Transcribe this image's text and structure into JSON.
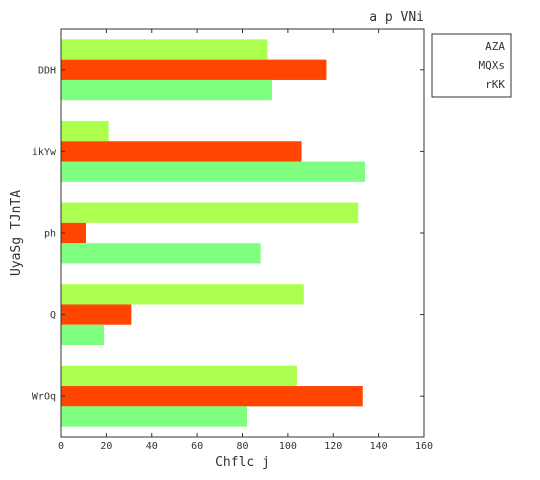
{
  "chart_data": {
    "type": "bar",
    "orientation": "horizontal",
    "title": "a  p VNi",
    "xlabel": "Chflc j",
    "ylabel": "UyaSg TJnTA",
    "categories": [
      "DDH",
      "ikYw",
      "ph",
      "Q",
      "WrOq"
    ],
    "series": [
      {
        "name": "AZA",
        "color": "#adff4f",
        "values": [
          91,
          21,
          131,
          107,
          104
        ]
      },
      {
        "name": "MQXs",
        "color": "#ff4500",
        "values": [
          117,
          106,
          11,
          31,
          133
        ]
      },
      {
        "name": "rKK",
        "color": "#7fff7f",
        "values": [
          93,
          134,
          88,
          19,
          82
        ]
      }
    ],
    "xlim": [
      0,
      160
    ],
    "xticks": [
      0,
      20,
      40,
      60,
      80,
      100,
      120,
      140,
      160
    ],
    "grid": false,
    "legend_position": "top-right, outside plot"
  }
}
